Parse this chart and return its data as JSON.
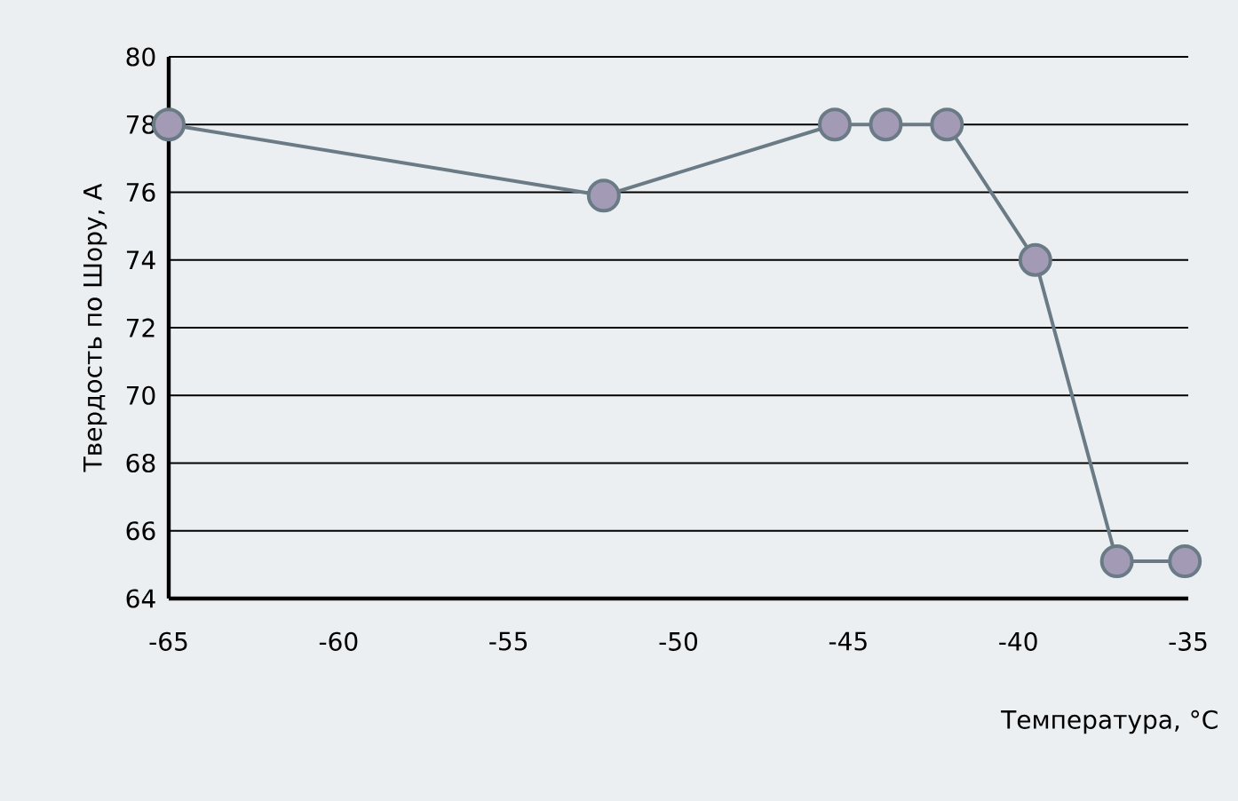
{
  "chart_data": {
    "type": "line",
    "xlabel": "Температура, °C",
    "ylabel": "Твердость по Шору, А",
    "x": [
      -65,
      -52.2,
      -45.4,
      -43.9,
      -42.1,
      -39.5,
      -37.1,
      -35.1
    ],
    "series": [
      {
        "color": "#6b7b86",
        "values": [
          78,
          75.9,
          78,
          78,
          78,
          74,
          65.1,
          65.1
        ]
      }
    ],
    "xlim": [
      -65,
      -35
    ],
    "xticks": [
      -65,
      -60,
      -55,
      -50,
      -45,
      -40,
      -35
    ],
    "ylim": [
      64,
      80
    ],
    "yticks": [
      64,
      66,
      68,
      70,
      72,
      74,
      76,
      78,
      80
    ],
    "grid": "y",
    "marker": "circle",
    "line_style": "solid"
  }
}
